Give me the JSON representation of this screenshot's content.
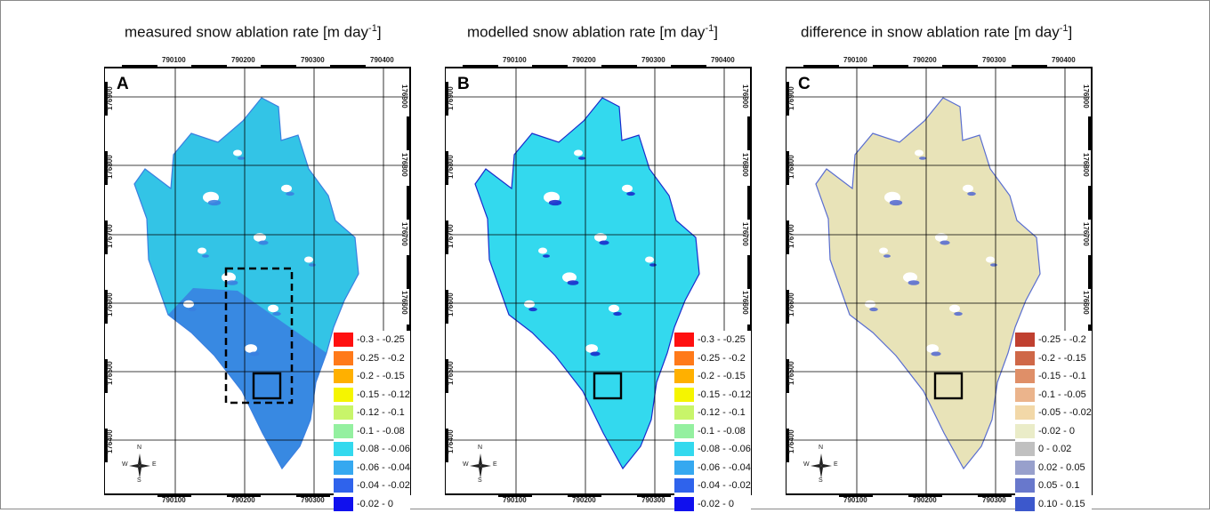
{
  "titles": {
    "a": {
      "text": "measured snow ablation rate [m day",
      "exp": "-1",
      "close": "]"
    },
    "b": {
      "text": "modelled snow ablation rate [m day",
      "exp": "-1",
      "close": "]"
    },
    "c": {
      "text": "difference in snow ablation rate [m day",
      "exp": "-1",
      "close": "]"
    }
  },
  "panels": [
    {
      "letter": "A",
      "fill": "#33c4e6",
      "alt": "#3a7fe0"
    },
    {
      "letter": "B",
      "fill": "#33d9ee",
      "alt": "#1a2ccc"
    },
    {
      "letter": "C",
      "fill": "#e8e3b8",
      "alt": "#5a6ed0"
    }
  ],
  "x_ticks_top": [
    "790100",
    "790200",
    "790300",
    "790400"
  ],
  "x_ticks_bottom": [
    "790100",
    "790200",
    "790300"
  ],
  "y_ticks": [
    "176900",
    "176800",
    "176700",
    "176600",
    "176500",
    "176400"
  ],
  "compass": {
    "n": "N",
    "s": "S",
    "e": "E",
    "w": "W"
  },
  "legend_ab": [
    {
      "label": "-0.3 - -0.25",
      "color": "#ff1010"
    },
    {
      "label": "-0.25 - -0.2",
      "color": "#ff7a1a"
    },
    {
      "label": "-0.2 - -0.15",
      "color": "#ffb000"
    },
    {
      "label": "-0.15 - -0.12",
      "color": "#f5f500"
    },
    {
      "label": "-0.12 - -0.1",
      "color": "#c8f56a"
    },
    {
      "label": "-0.1 - -0.08",
      "color": "#94f0a0"
    },
    {
      "label": "-0.08 - -0.06",
      "color": "#33d9ee"
    },
    {
      "label": "-0.06 - -0.04",
      "color": "#35a8f0"
    },
    {
      "label": "-0.04 - -0.02",
      "color": "#2f63ec"
    },
    {
      "label": "-0.02 - 0",
      "color": "#1010ee"
    }
  ],
  "legend_c": [
    {
      "label": "-0.25 - -0.2",
      "color": "#c04030"
    },
    {
      "label": "-0.2 - -0.15",
      "color": "#cf6848"
    },
    {
      "label": "-0.15 - -0.1",
      "color": "#df8f68"
    },
    {
      "label": "-0.1 - -0.05",
      "color": "#ebb48c"
    },
    {
      "label": "-0.05 - -0.02",
      "color": "#f2d8a8"
    },
    {
      "label": "-0.02 - 0",
      "color": "#eaecc8"
    },
    {
      "label": "0 - 0.02",
      "color": "#c0c0c0"
    },
    {
      "label": "0.02 - 0.05",
      "color": "#98a0cc"
    },
    {
      "label": "0.05 - 0.1",
      "color": "#6878cc"
    },
    {
      "label": "0.10 - 0.15",
      "color": "#3c58cc"
    }
  ]
}
